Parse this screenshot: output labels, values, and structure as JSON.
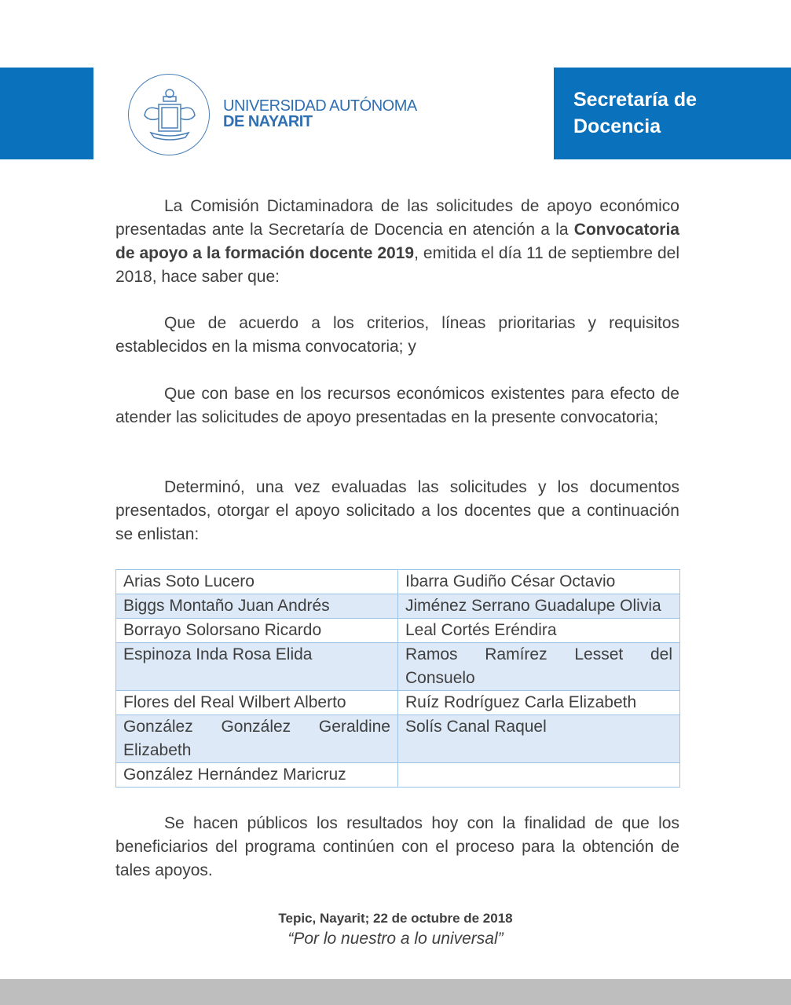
{
  "header": {
    "university_line1": "UNIVERSIDAD AUTÓNOMA",
    "university_line2": "DE NAYARIT",
    "department": "Secretaría de Docencia",
    "brand_color": "#0a72bd"
  },
  "paragraphs": {
    "p1_a": "La Comisión Dictaminadora de las solicitudes de apoyo económico presentadas ante la Secretaría de Docencia en atención a la ",
    "p1_bold": "Convocatoria de apoyo a la formación docente 2019",
    "p1_b": ", emitida el día 11 de septiembre del 2018, hace saber que:",
    "p2": "Que de acuerdo a los criterios, líneas prioritarias y requisitos establecidos en la misma convocatoria; y",
    "p3": "Que con base en los recursos económicos existentes para efecto de atender las solicitudes de apoyo presentadas en la presente convocatoria;",
    "p4": "Determinó, una vez evaluadas las solicitudes y los documentos presentados, otorgar el apoyo solicitado a los docentes que a continuación se enlistan:",
    "p5": "Se hacen públicos los resultados hoy con la finalidad de que los beneficiarios del programa continúen con el proceso para la obtención de tales apoyos."
  },
  "table": {
    "rows": [
      [
        "Arias Soto Lucero",
        "Ibarra Gudiño César Octavio"
      ],
      [
        "Biggs Montaño Juan Andrés",
        "Jiménez Serrano Guadalupe Olivia"
      ],
      [
        "Borrayo Solorsano Ricardo",
        "Leal Cortés Eréndira"
      ],
      [
        "Espinoza Inda Rosa Elida",
        "Ramos Ramírez Lesset del Consuelo"
      ],
      [
        "Flores del Real Wilbert Alberto",
        "Ruíz Rodríguez Carla Elizabeth"
      ],
      [
        "González González Geraldine Elizabeth",
        "Solís Canal Raquel"
      ],
      [
        "González Hernández Maricruz",
        ""
      ]
    ]
  },
  "closing": {
    "place_date": "Tepic, Nayarit; 22 de octubre de 2018",
    "motto": "“Por lo nuestro a lo universal”"
  }
}
